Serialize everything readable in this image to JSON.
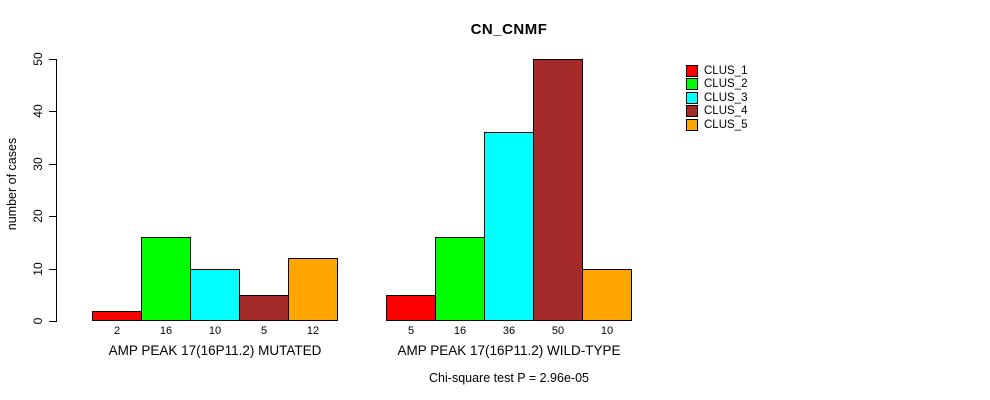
{
  "chart_data": {
    "type": "bar",
    "title": "CN_CNMF",
    "ylabel": "number of cases",
    "ylim": [
      0,
      50
    ],
    "yticks": [
      0,
      10,
      20,
      30,
      40,
      50
    ],
    "grid": false,
    "legend_position": "right",
    "bar_value_labels": true,
    "categories": [
      "AMP PEAK 17(16P11.2) MUTATED",
      "AMP PEAK 17(16P11.2) WILD-TYPE"
    ],
    "series": [
      {
        "name": "CLUS_1",
        "color": "#FF0000",
        "values": [
          2,
          5
        ]
      },
      {
        "name": "CLUS_2",
        "color": "#00FF00",
        "values": [
          16,
          16
        ]
      },
      {
        "name": "CLUS_3",
        "color": "#00FFFF",
        "values": [
          10,
          36
        ]
      },
      {
        "name": "CLUS_4",
        "color": "#A52A2A",
        "values": [
          5,
          50
        ]
      },
      {
        "name": "CLUS_5",
        "color": "#FFA500",
        "values": [
          12,
          10
        ]
      }
    ],
    "footnote": "Chi-square test P = 2.96e-05"
  }
}
